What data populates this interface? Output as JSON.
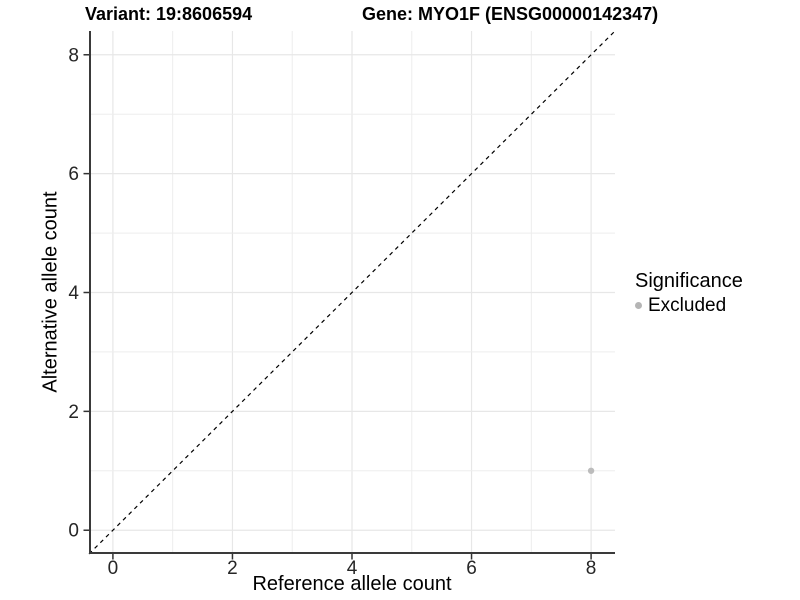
{
  "figure": {
    "title_variant": "Variant: 19:8606594",
    "title_gene": "Gene: MYO1F (ENSG00000142347)"
  },
  "chart_data": {
    "type": "scatter",
    "titles": [
      "Variant: 19:8606594",
      "Gene: MYO1F (ENSG00000142347)"
    ],
    "xlabel": "Reference allele count",
    "ylabel": "Alternative allele count",
    "xlim": [
      -0.4,
      8.4
    ],
    "ylim": [
      -0.4,
      8.4
    ],
    "xticks": [
      0,
      2,
      4,
      6,
      8
    ],
    "yticks": [
      0,
      2,
      4,
      6,
      8
    ],
    "grid": "on",
    "grid_interval": 1,
    "reference_line": {
      "type": "identity y=x",
      "style": "dashed",
      "color": "#000000",
      "from": [
        -0.4,
        -0.4
      ],
      "to": [
        8.4,
        8.4
      ]
    },
    "series": [
      {
        "name": "Excluded",
        "marker": "circle",
        "color": "#bcbcbc",
        "points": [
          [
            8,
            1
          ]
        ]
      }
    ],
    "legend": {
      "title": "Significance",
      "position": "right",
      "items": [
        {
          "label": "Excluded",
          "color": "#b5b5b5"
        }
      ]
    },
    "colors": {
      "background": "#ffffff",
      "grid_major": "#e7e7e7",
      "grid_minor": "#ededed",
      "axis_line": "#3a3a3a",
      "tick_mark": "#333333",
      "text": "#000000"
    }
  }
}
